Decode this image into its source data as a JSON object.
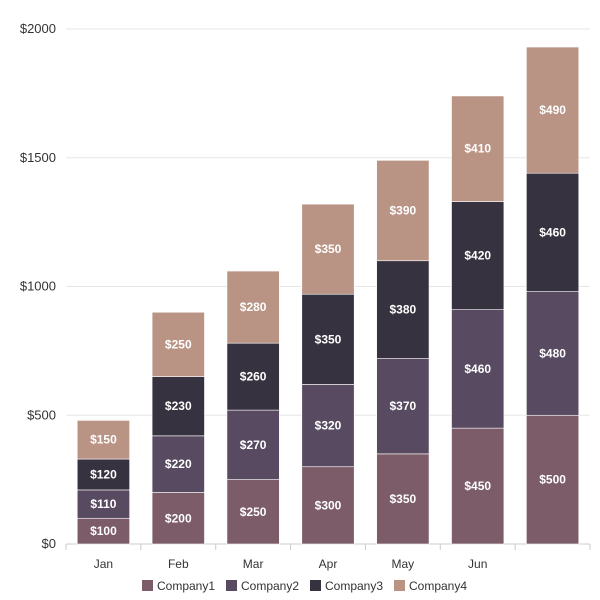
{
  "chart_data": {
    "type": "bar",
    "stacked": true,
    "categories": [
      "Jan",
      "Feb",
      "Mar",
      "Apr",
      "May",
      "Jun",
      ""
    ],
    "series": [
      {
        "name": "Company1",
        "color": "#7b5c68",
        "values": [
          100,
          200,
          250,
          300,
          350,
          450,
          500
        ],
        "labels": [
          "$100",
          "$200",
          "$250",
          "$300",
          "$350",
          "$450",
          "$500"
        ]
      },
      {
        "name": "Company2",
        "color": "#574a61",
        "values": [
          110,
          220,
          270,
          320,
          370,
          460,
          480
        ],
        "labels": [
          "$110",
          "$220",
          "$270",
          "$320",
          "$370",
          "$460",
          "$480"
        ]
      },
      {
        "name": "Company3",
        "color": "#37323f",
        "values": [
          120,
          230,
          260,
          350,
          380,
          420,
          460
        ],
        "labels": [
          "$120",
          "$230",
          "$260",
          "$350",
          "$380",
          "$420",
          "$460"
        ]
      },
      {
        "name": "Company4",
        "color": "#b99384",
        "values": [
          150,
          250,
          280,
          350,
          390,
          410,
          490
        ],
        "labels": [
          "$150",
          "$250",
          "$280",
          "$350",
          "$390",
          "$410",
          "$490"
        ]
      }
    ],
    "y_ticks": [
      0,
      500,
      1000,
      1500,
      2000
    ],
    "y_tick_labels": [
      "$0",
      "$500",
      "$1000",
      "$1500",
      "$2000"
    ],
    "ylim": [
      0,
      2000
    ],
    "grid": true,
    "legend_position": "bottom"
  }
}
